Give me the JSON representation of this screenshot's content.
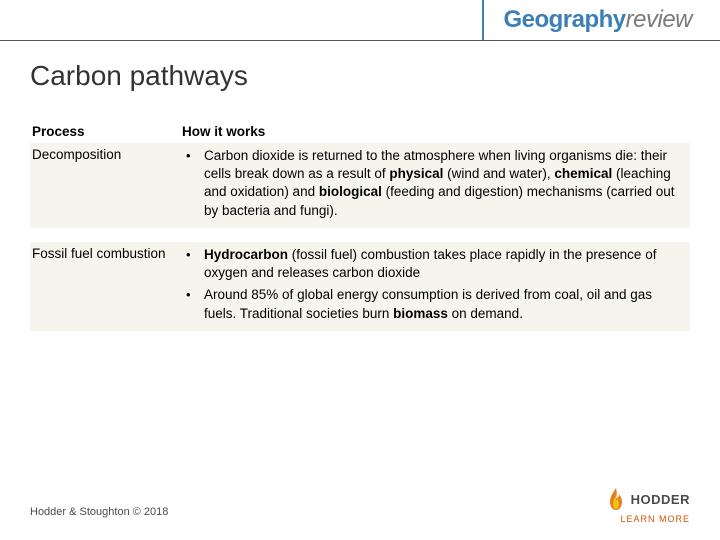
{
  "brand": {
    "part1": "Geography",
    "part2": "review"
  },
  "title": "Carbon pathways",
  "table": {
    "headers": {
      "process": "Process",
      "how": "How it works"
    },
    "rows": [
      {
        "process": "Decomposition",
        "bullets": [
          {
            "segments": [
              {
                "t": "Carbon dioxide is returned to the atmosphere when living organisms die: their cells break down as a result of ",
                "b": false
              },
              {
                "t": "physical",
                "b": true
              },
              {
                "t": " (wind and water), ",
                "b": false
              },
              {
                "t": "chemical",
                "b": true
              },
              {
                "t": " (leaching and oxidation) and ",
                "b": false
              },
              {
                "t": "biological",
                "b": true
              },
              {
                "t": " (feeding and digestion) mechanisms (carried out by bacteria and fungi).",
                "b": false
              }
            ]
          }
        ]
      },
      {
        "process": "Fossil fuel combustion",
        "bullets": [
          {
            "segments": [
              {
                "t": "Hydrocarbon",
                "b": true
              },
              {
                "t": " (fossil fuel) combustion takes place rapidly in the presence of oxygen and releases carbon dioxide",
                "b": false
              }
            ]
          },
          {
            "segments": [
              {
                "t": "Around 85% of global energy consumption is derived from coal, oil and gas fuels. Traditional societies burn ",
                "b": false
              },
              {
                "t": "biomass",
                "b": true
              },
              {
                "t": " on demand.",
                "b": false
              }
            ]
          }
        ]
      }
    ]
  },
  "footer": "Hodder & Stoughton © 2018",
  "hodder": {
    "name": "HODDER",
    "sub": "LEARN MORE"
  },
  "colors": {
    "accent": "#3b7fb6",
    "rule": "#555555",
    "row_bg": "#f7f4ed",
    "text": "#333333",
    "flame_orange": "#e67e22",
    "flame_yellow": "#f1c40f"
  }
}
